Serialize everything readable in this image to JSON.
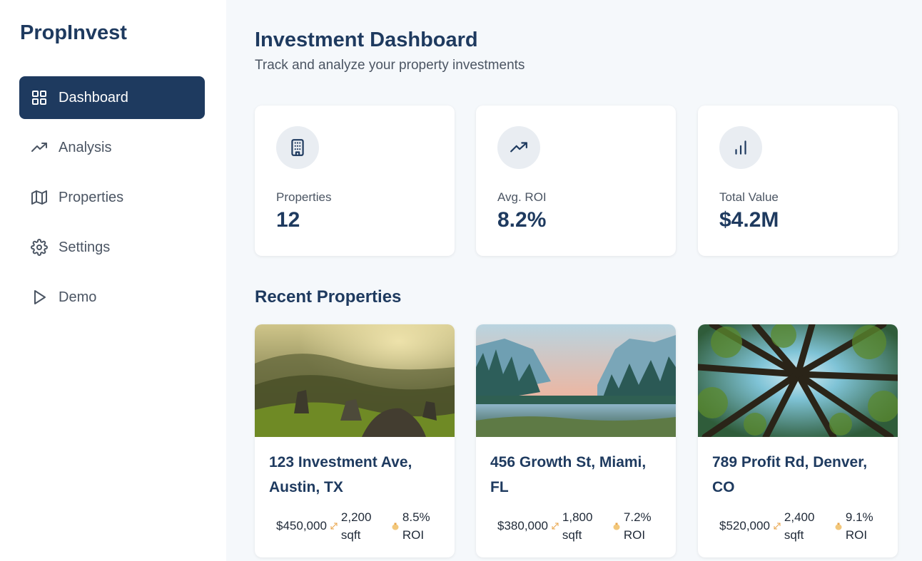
{
  "app": {
    "logo": "PropInvest"
  },
  "sidebar": {
    "items": [
      {
        "label": "Dashboard",
        "icon": "dashboard-grid-icon",
        "active": true
      },
      {
        "label": "Analysis",
        "icon": "trending-up-icon",
        "active": false
      },
      {
        "label": "Properties",
        "icon": "map-icon",
        "active": false
      },
      {
        "label": "Settings",
        "icon": "gear-icon",
        "active": false
      },
      {
        "label": "Demo",
        "icon": "play-icon",
        "active": false
      }
    ]
  },
  "header": {
    "title": "Investment Dashboard",
    "subtitle": "Track and analyze your property investments"
  },
  "stats": [
    {
      "label": "Properties",
      "value": "12",
      "icon": "building-icon"
    },
    {
      "label": "Avg. ROI",
      "value": "8.2%",
      "icon": "trending-up-icon"
    },
    {
      "label": "Total Value",
      "value": "$4.2M",
      "icon": "bar-chart-icon"
    }
  ],
  "recent": {
    "title": "Recent Properties",
    "properties": [
      {
        "address": "123 Investment Ave, Austin, TX",
        "price": "$450,000",
        "sqft_num": "2,200",
        "sqft_unit": "sqft",
        "roi_num": "8.5%",
        "roi_unit": "ROI",
        "image": "mountain-valley-photo"
      },
      {
        "address": "456 Growth St, Miami, FL",
        "price": "$380,000",
        "sqft_num": "1,800",
        "sqft_unit": "sqft",
        "roi_num": "7.2%",
        "roi_unit": "ROI",
        "image": "lake-forest-photo"
      },
      {
        "address": "789 Profit Rd, Denver, CO",
        "price": "$520,000",
        "sqft_num": "2,400",
        "sqft_unit": "sqft",
        "roi_num": "9.1%",
        "roi_unit": "ROI",
        "image": "tree-canopy-photo"
      }
    ]
  },
  "colors": {
    "primary": "#1e3a5f",
    "background": "#f5f8fb",
    "accent": "#e8a44a"
  }
}
